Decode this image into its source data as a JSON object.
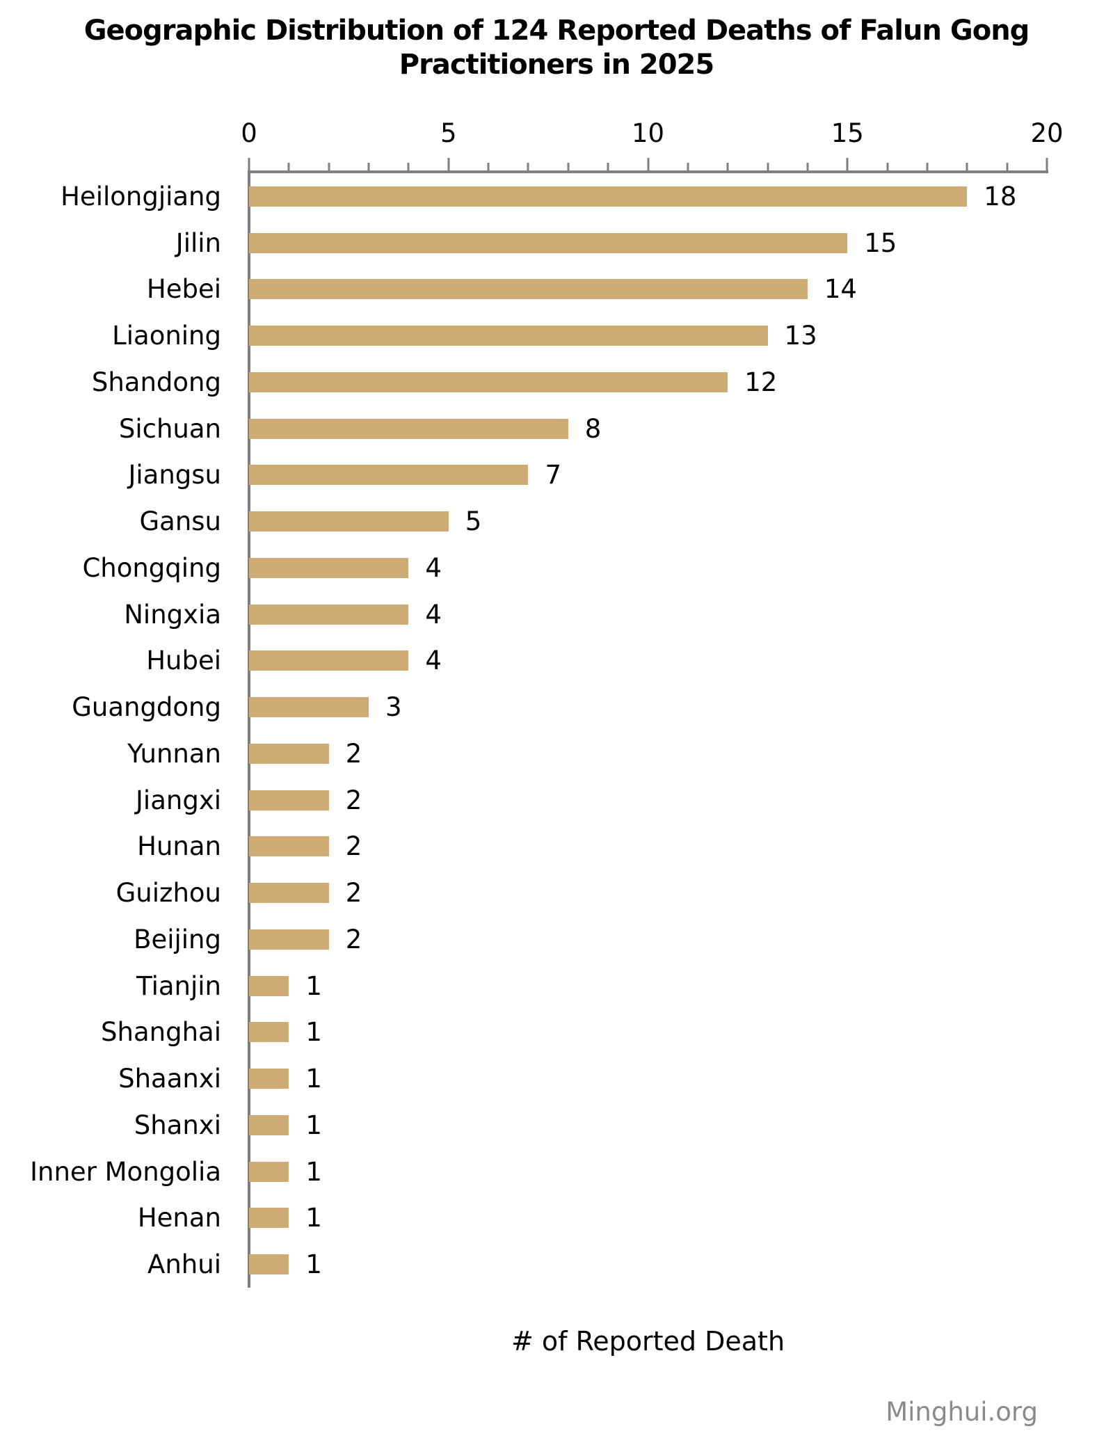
{
  "title": "Geographic Distribution of 124 Reported Deaths of Falun Gong\nPractitioners in 2025",
  "watermark": "Minghui.org",
  "chart_data": {
    "type": "bar",
    "orientation": "horizontal",
    "title": "Geographic Distribution of 124 Reported Deaths of Falun Gong Practitioners in 2025",
    "total_reported_deaths": 124,
    "categories": [
      "Heilongjiang",
      "Jilin",
      "Hebei",
      "Liaoning",
      "Shandong",
      "Sichuan",
      "Jiangsu",
      "Gansu",
      "Chongqing",
      "Ningxia",
      "Hubei",
      "Guangdong",
      "Yunnan",
      "Jiangxi",
      "Hunan",
      "Guizhou",
      "Beijing",
      "Tianjin",
      "Shanghai",
      "Shaanxi",
      "Shanxi",
      "Inner Mongolia",
      "Henan",
      "Anhui"
    ],
    "values": [
      18,
      15,
      14,
      13,
      12,
      8,
      7,
      5,
      4,
      4,
      4,
      3,
      2,
      2,
      2,
      2,
      2,
      1,
      1,
      1,
      1,
      1,
      1,
      1
    ],
    "xlabel": "# of Reported Death",
    "ylabel": "",
    "xlim": [
      0,
      20
    ],
    "xticks": [
      0,
      5,
      10,
      15,
      20
    ],
    "minor_tick_step": 1,
    "grid": false,
    "legend": "none",
    "value_labels_shown": true,
    "bar_color": "#CEAA74",
    "axis_color": "#7F7F7F",
    "text_color": "#000000",
    "watermark_color": "#8A8A8A"
  }
}
